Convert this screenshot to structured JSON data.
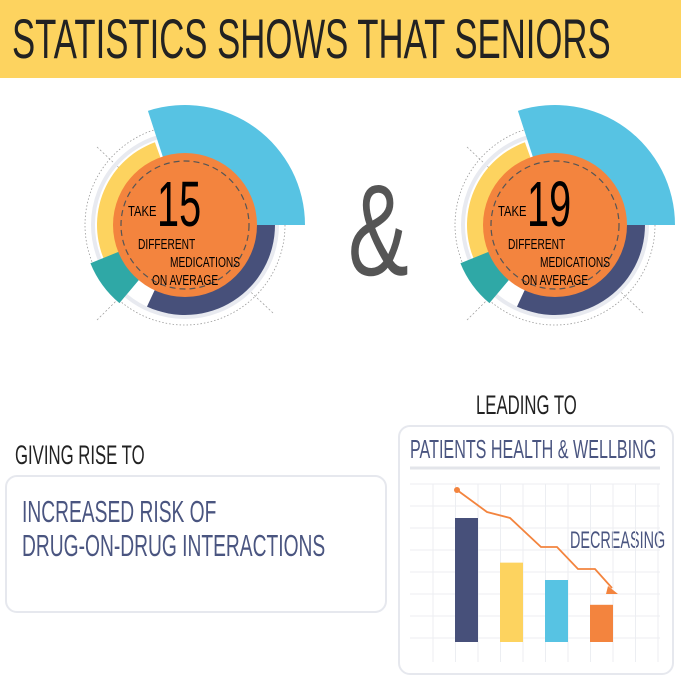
{
  "header": {
    "title": "STATISTICS SHOWS THAT SENIORS"
  },
  "stats": [
    {
      "prefix": "TAKE",
      "number": "15",
      "line1": "DIFFERENT",
      "line2": "MEDICATIONS",
      "line3": "ON AVERAGE"
    },
    {
      "prefix": "TAKE",
      "number": "19",
      "line1": "DIFFERENT",
      "line2": "MEDICATIONS",
      "line3": "ON AVERAGE"
    }
  ],
  "ampersand": "&",
  "risk": {
    "heading": "GIVING RISE TO",
    "line1": "INCREASED RISK OF",
    "line2": "DRUG-ON-DRUG INTERACTIONS"
  },
  "outcome": {
    "heading": "LEADING TO",
    "title": "PATIENTS HEALTH & WELLBING",
    "trend_label": "DECREASING"
  },
  "colors": {
    "yellow": "#fdd35f",
    "orange": "#f3843e",
    "blue": "#57c3e3",
    "navy": "#47507a",
    "teal": "#2fa8a6",
    "text_navy": "#4a5580"
  },
  "chart_data": {
    "type": "bar",
    "values": [
      5,
      3.2,
      2.5,
      1.5
    ],
    "colors": [
      "#47507a",
      "#fdd35f",
      "#57c3e3",
      "#f3843e"
    ],
    "trend_line": "decreasing"
  }
}
